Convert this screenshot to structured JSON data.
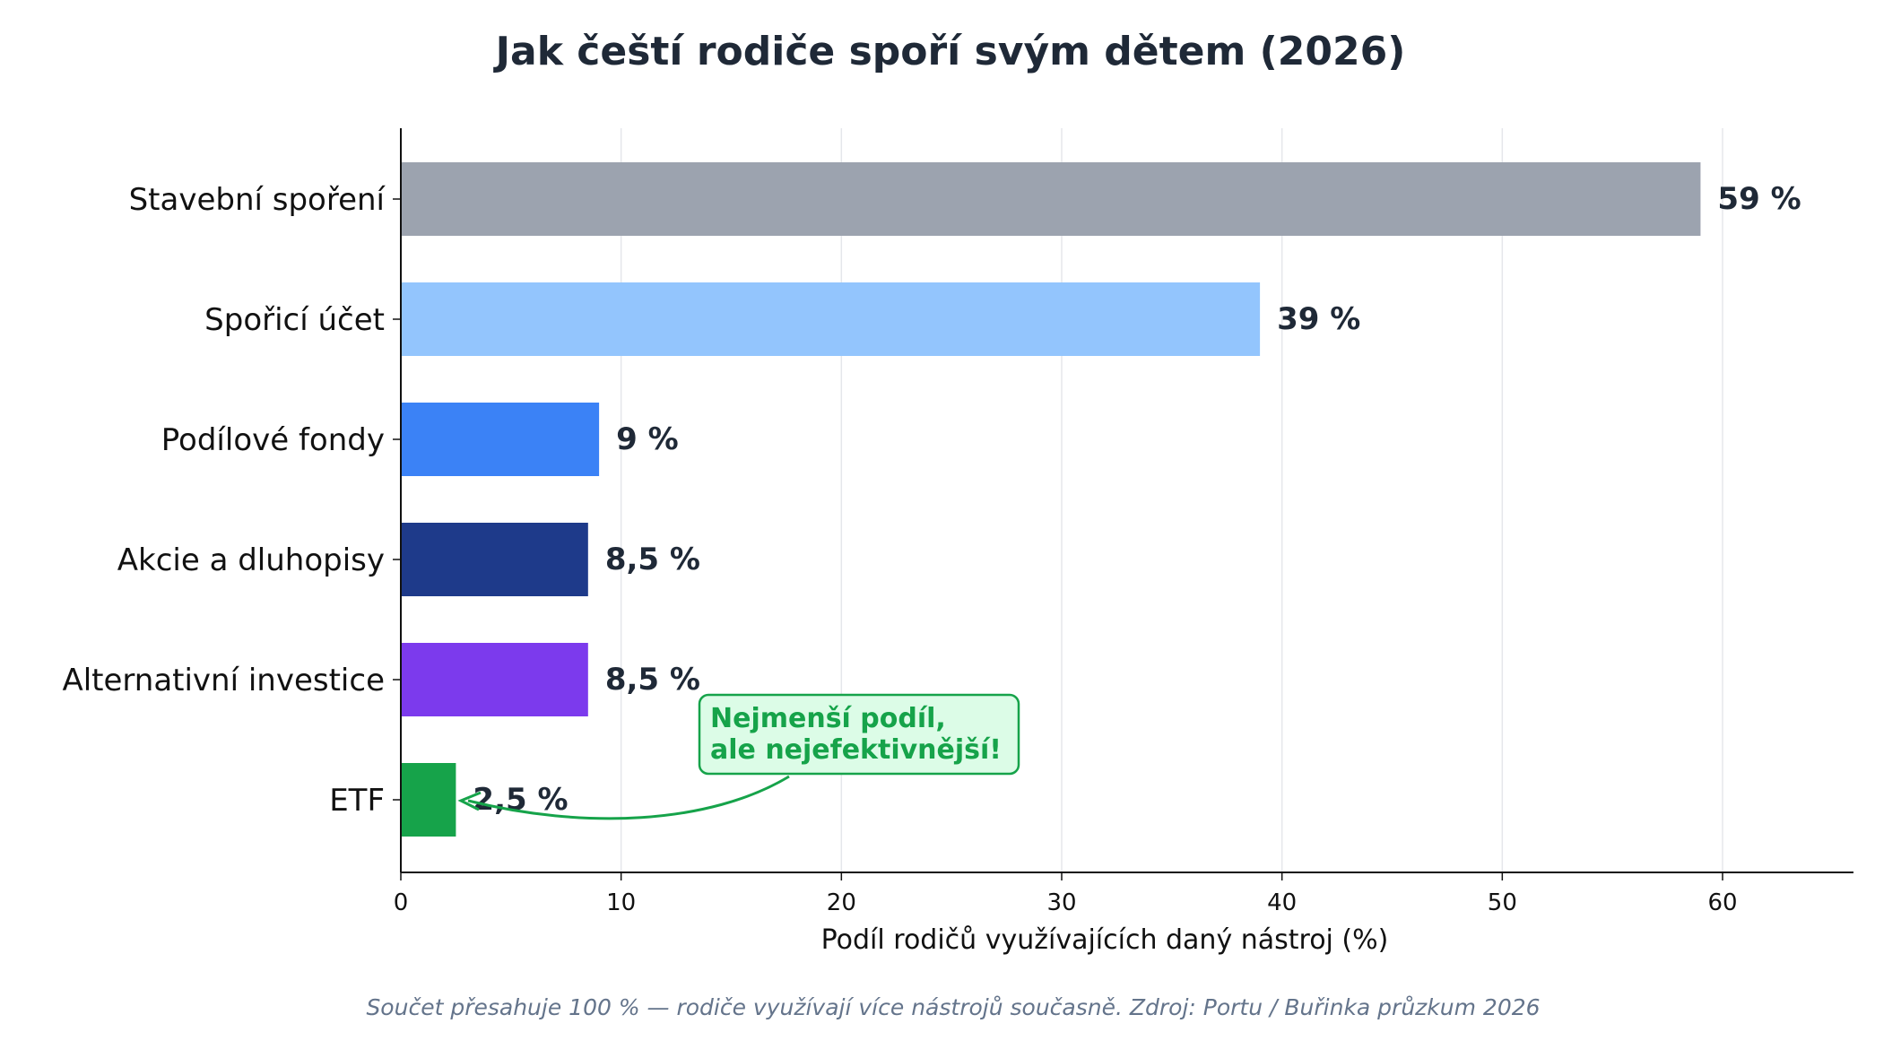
{
  "chart_data": {
    "type": "bar",
    "orientation": "horizontal",
    "title": "Jak čeští rodiče spoří svým dětem (2026)",
    "xlabel": "Podíl rodičů využívajících daný nástroj (%)",
    "ylabel": "",
    "xlim": [
      0,
      66
    ],
    "xticks": [
      0,
      10,
      20,
      30,
      40,
      50,
      60
    ],
    "grid": "vertical",
    "categories": [
      "Stavební spoření",
      "Spořicí účet",
      "Podílové fondy",
      "Akcie a dluhopisy",
      "Alternativní investice",
      "ETF"
    ],
    "values": [
      59,
      39,
      9,
      8.5,
      8.5,
      2.5
    ],
    "value_labels": [
      "59 %",
      "39 %",
      "9 %",
      "8,5 %",
      "8,5 %",
      "2,5 %"
    ],
    "colors": [
      "#9ca3af",
      "#93c5fd",
      "#3b82f6",
      "#1e3a8a",
      "#7c3aed",
      "#16a34a"
    ],
    "annotation": {
      "lines": [
        "Nejmenší podíl,",
        "ale nejefektivnější!"
      ],
      "target_category": "ETF",
      "color": "#16a34a",
      "background": "#dcfce7"
    },
    "footnote": "Součet přesahuje 100 % — rodiče využívají více nástrojů současně.   Zdroj: Portu / Buřinka průzkum 2026"
  }
}
